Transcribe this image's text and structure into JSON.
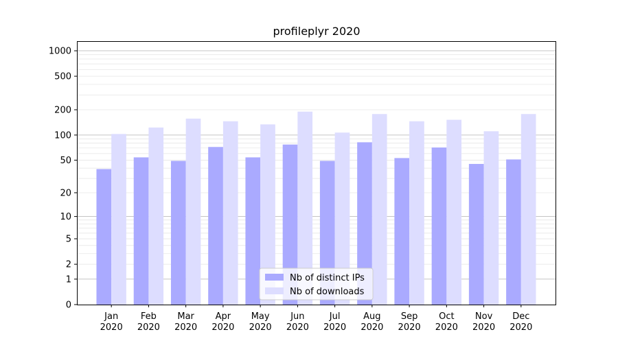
{
  "chart_data": {
    "type": "bar",
    "title": "profileplyr 2020",
    "xlabel": "",
    "ylabel": "",
    "categories": [
      "Jan\n2020",
      "Feb\n2020",
      "Mar\n2020",
      "Apr\n2020",
      "May\n2020",
      "Jun\n2020",
      "Jul\n2020",
      "Aug\n2020",
      "Sep\n2020",
      "Oct\n2020",
      "Nov\n2020",
      "Dec\n2020"
    ],
    "series": [
      {
        "name": "Nb of distinct IPs",
        "color": "#aaaaff",
        "values": [
          39,
          54,
          49,
          72,
          54,
          77,
          49,
          82,
          53,
          71,
          45,
          51
        ]
      },
      {
        "name": "Nb of downloads",
        "color": "#ddddff",
        "values": [
          103,
          123,
          157,
          146,
          134,
          190,
          107,
          178,
          146,
          152,
          111,
          178
        ]
      }
    ],
    "yscale": "log (value+1)",
    "ylim": [
      0,
      1300
    ],
    "yticks": [
      0,
      1,
      2,
      5,
      10,
      20,
      50,
      100,
      200,
      500,
      1000
    ],
    "grid": true,
    "legend": "bottom-center"
  }
}
